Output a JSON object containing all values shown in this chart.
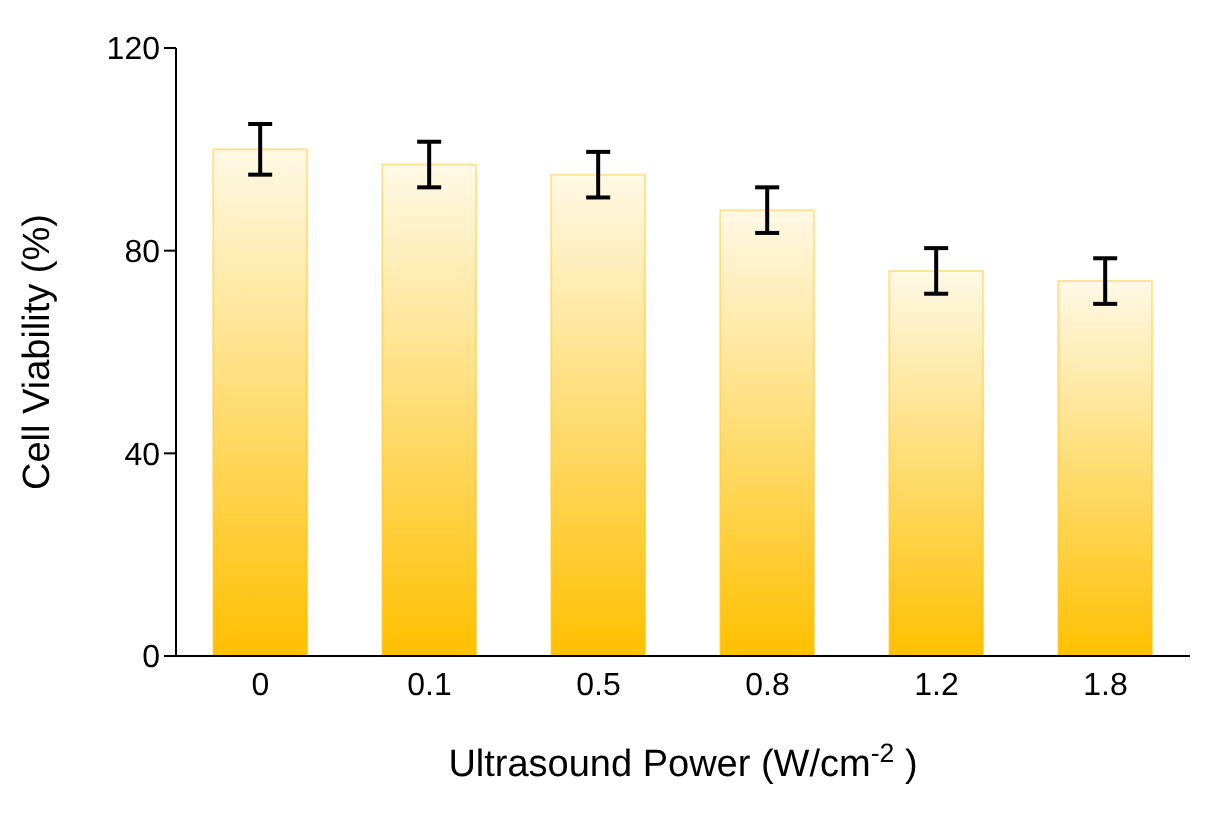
{
  "chart_data": {
    "type": "bar",
    "xlabel": "Ultrasound Power (W/cm$^{-2}$ )",
    "ylabel": "Cell Viability (%)",
    "categories": [
      "0",
      "0.1",
      "0.5",
      "0.8",
      "1.2",
      "1.8"
    ],
    "values": [
      100,
      97,
      95,
      88,
      76,
      74
    ],
    "errors": [
      5,
      4.5,
      4.5,
      4.5,
      4.5,
      4.5
    ],
    "color": "#ffc000",
    "ylim": [
      0,
      120
    ],
    "yticks": [
      0,
      40,
      80,
      120
    ],
    "grid": false
  }
}
